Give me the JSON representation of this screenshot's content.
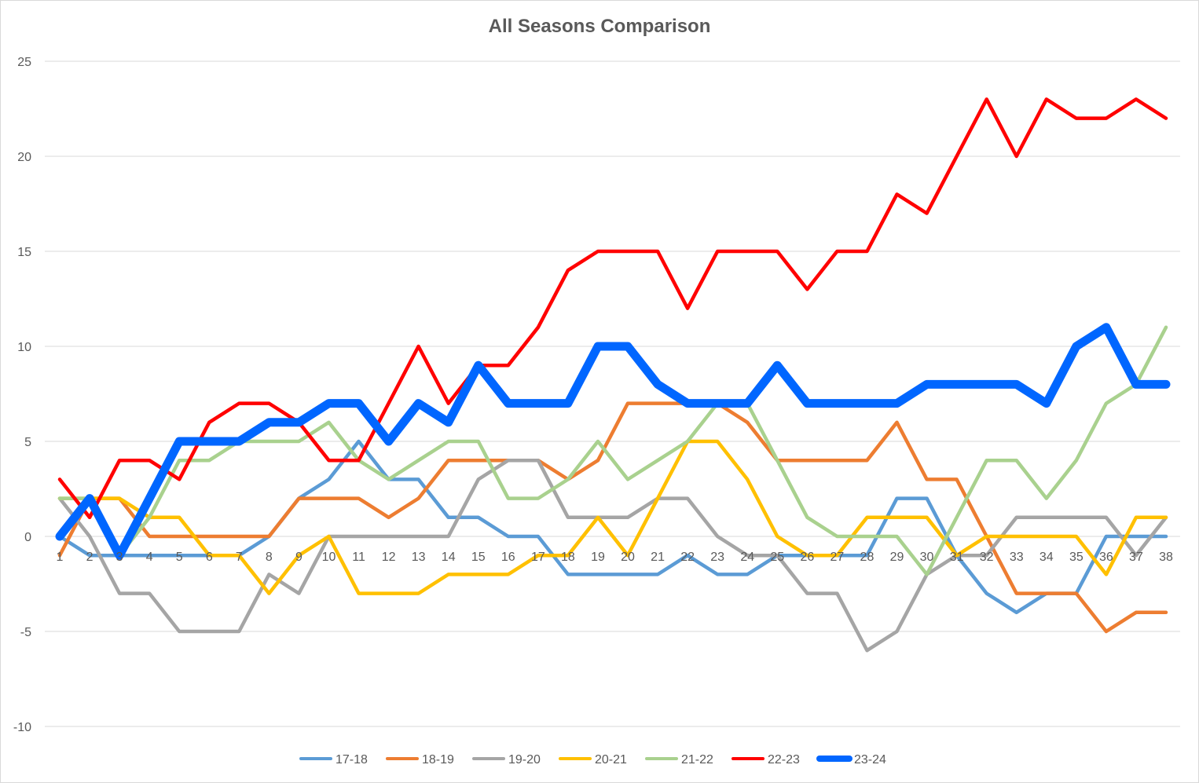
{
  "chart_data": {
    "type": "line",
    "title": "All Seasons Comparison",
    "xlabel": "",
    "ylabel": "",
    "x": [
      1,
      2,
      3,
      4,
      5,
      6,
      7,
      8,
      9,
      10,
      11,
      12,
      13,
      14,
      15,
      16,
      17,
      18,
      19,
      20,
      21,
      22,
      23,
      24,
      25,
      26,
      27,
      28,
      29,
      30,
      31,
      32,
      33,
      34,
      35,
      36,
      37,
      38
    ],
    "x_tick_labels": [
      "1",
      "2",
      "3",
      "4",
      "5",
      "6",
      "7",
      "8",
      "9",
      "10",
      "11",
      "12",
      "13",
      "14",
      "15",
      "16",
      "17",
      "18",
      "19",
      "20",
      "21",
      "22",
      "23",
      "24",
      "25",
      "26",
      "27",
      "28",
      "29",
      "30",
      "31",
      "32",
      "33",
      "34",
      "35",
      "36",
      "37",
      "38"
    ],
    "ylim": [
      -10,
      25
    ],
    "y_ticks": [
      -10,
      -5,
      0,
      5,
      10,
      15,
      20,
      25
    ],
    "y_tick_labels": [
      "-10",
      "-5",
      "0",
      "5",
      "10",
      "15",
      "20",
      "25"
    ],
    "grid": true,
    "legend_position": "bottom",
    "series": [
      {
        "name": "17-18",
        "color": "#5b9bd5",
        "emphasis": false,
        "values": [
          0,
          -1,
          -1,
          -1,
          -1,
          -1,
          -1,
          0,
          2,
          3,
          5,
          3,
          3,
          1,
          1,
          0,
          0,
          -2,
          -2,
          -2,
          -2,
          -1,
          -2,
          -2,
          -1,
          -1,
          -1,
          -1,
          2,
          2,
          -1,
          -3,
          -4,
          -3,
          -3,
          0,
          0,
          0
        ]
      },
      {
        "name": "18-19",
        "color": "#ed7d31",
        "emphasis": false,
        "values": [
          -1,
          2,
          2,
          0,
          0,
          0,
          0,
          0,
          2,
          2,
          2,
          1,
          2,
          4,
          4,
          4,
          4,
          3,
          4,
          7,
          7,
          7,
          7,
          6,
          4,
          4,
          4,
          4,
          6,
          3,
          3,
          0,
          -3,
          -3,
          -3,
          -5,
          -4,
          -4
        ]
      },
      {
        "name": "19-20",
        "color": "#a5a5a5",
        "emphasis": false,
        "values": [
          2,
          0,
          -3,
          -3,
          -5,
          -5,
          -5,
          -2,
          -3,
          0,
          0,
          0,
          0,
          0,
          3,
          4,
          4,
          1,
          1,
          1,
          2,
          2,
          0,
          -1,
          -1,
          -3,
          -3,
          -6,
          -5,
          -2,
          -1,
          -1,
          1,
          1,
          1,
          1,
          -1,
          1
        ]
      },
      {
        "name": "20-21",
        "color": "#ffc000",
        "emphasis": false,
        "values": [
          2,
          2,
          2,
          1,
          1,
          -1,
          -1,
          -3,
          -1,
          0,
          -3,
          -3,
          -3,
          -2,
          -2,
          -2,
          -1,
          -1,
          1,
          -1,
          2,
          5,
          5,
          3,
          0,
          -1,
          -1,
          1,
          1,
          1,
          -1,
          0,
          0,
          0,
          0,
          -2,
          1,
          1
        ]
      },
      {
        "name": "21-22",
        "color": "#a9d18e",
        "emphasis": false,
        "values": [
          2,
          2,
          -1,
          1,
          4,
          4,
          5,
          5,
          5,
          6,
          4,
          3,
          4,
          5,
          5,
          2,
          2,
          3,
          5,
          3,
          4,
          5,
          7,
          7,
          4,
          1,
          0,
          0,
          0,
          -2,
          1,
          4,
          4,
          2,
          4,
          7,
          8,
          11
        ]
      },
      {
        "name": "22-23",
        "color": "#ff0000",
        "emphasis": false,
        "values": [
          3,
          1,
          4,
          4,
          3,
          6,
          7,
          7,
          6,
          4,
          4,
          7,
          10,
          7,
          9,
          9,
          11,
          14,
          15,
          15,
          15,
          12,
          15,
          15,
          15,
          13,
          15,
          15,
          18,
          17,
          20,
          23,
          20,
          23,
          22,
          22,
          23,
          22
        ]
      },
      {
        "name": "23-24",
        "color": "#0066ff",
        "emphasis": true,
        "values": [
          0,
          2,
          -1,
          2,
          5,
          5,
          5,
          6,
          6,
          7,
          7,
          5,
          7,
          6,
          9,
          7,
          7,
          7,
          10,
          10,
          8,
          7,
          7,
          7,
          9,
          7,
          7,
          7,
          7,
          8,
          8,
          8,
          8,
          7,
          10,
          11,
          8,
          8
        ]
      }
    ]
  }
}
